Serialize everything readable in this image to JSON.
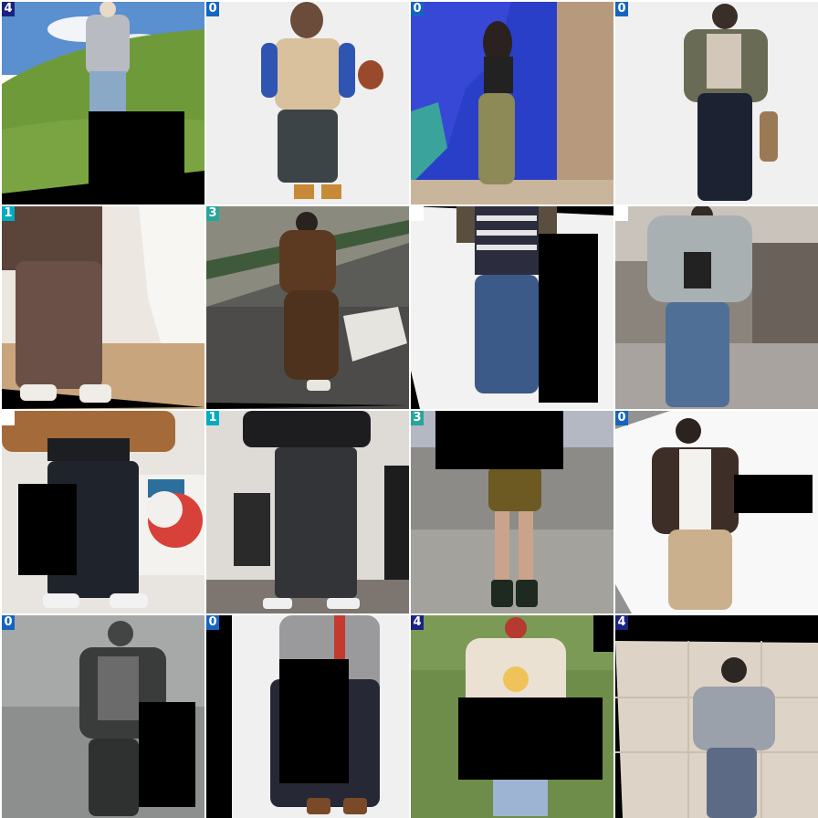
{
  "tiles": [
    {
      "label": "4",
      "badge_color": "#1a237e"
    },
    {
      "label": "0",
      "badge_color": "#1565c0"
    },
    {
      "label": "0",
      "badge_color": "#1565c0"
    },
    {
      "label": "0",
      "badge_color": "#1565c0"
    },
    {
      "label": "1",
      "badge_color": "#00acc1"
    },
    {
      "label": "3",
      "badge_color": "#26a69a"
    },
    {
      "label": "",
      "badge_color": "#ffffff"
    },
    {
      "label": "",
      "badge_color": "#ffffff"
    },
    {
      "label": "",
      "badge_color": "#ffffff"
    },
    {
      "label": "1",
      "badge_color": "#00acc1"
    },
    {
      "label": "3",
      "badge_color": "#26a69a"
    },
    {
      "label": "0",
      "badge_color": "#1565c0"
    },
    {
      "label": "0",
      "badge_color": "#1565c0"
    },
    {
      "label": "0",
      "badge_color": "#1565c0"
    },
    {
      "label": "4",
      "badge_color": "#1a237e"
    },
    {
      "label": "4",
      "badge_color": "#1a237e"
    }
  ]
}
